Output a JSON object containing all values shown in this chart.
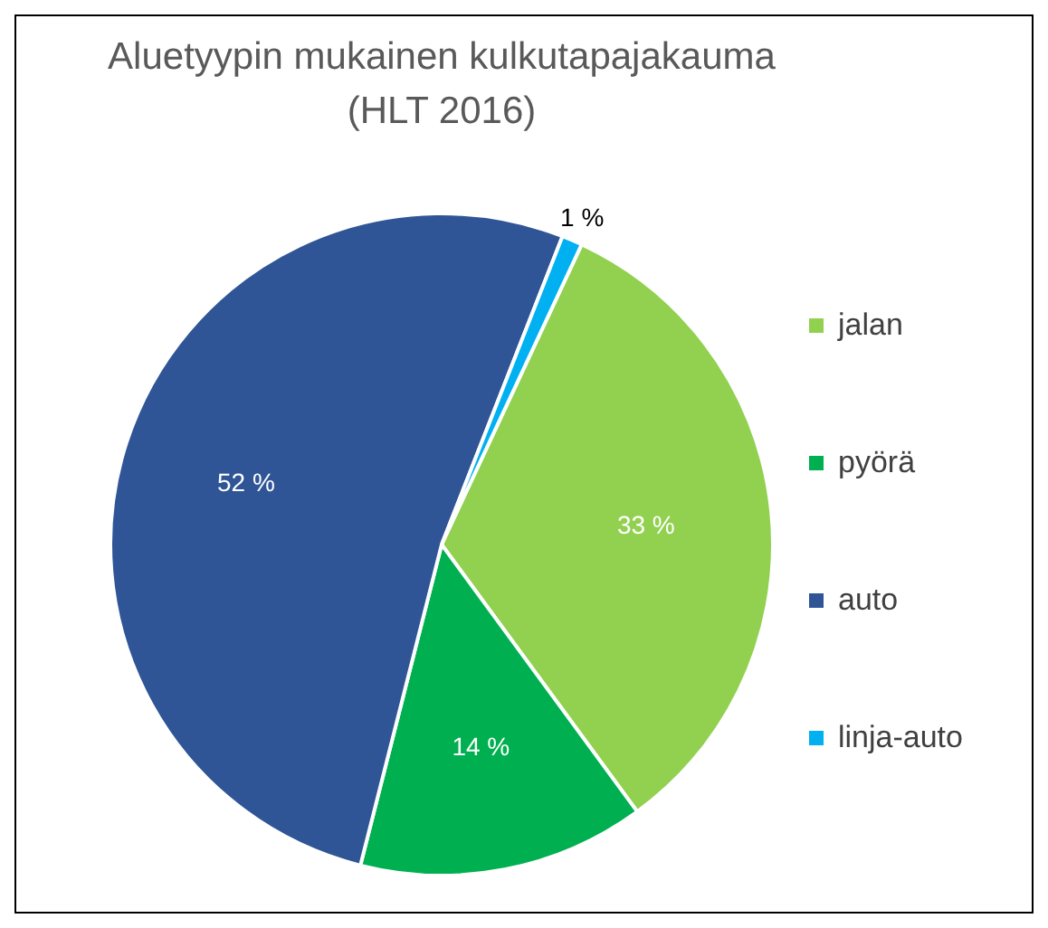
{
  "chart_data": {
    "type": "pie",
    "title": "Aluetyypin mukainen kulkutapajakauma\n(HLT 2016)",
    "categories": [
      "jalan",
      "pyörä",
      "auto",
      "linja-auto"
    ],
    "values": [
      33,
      14,
      52,
      1
    ],
    "colors": [
      "#92d050",
      "#00b050",
      "#2f5597",
      "#00b0f0"
    ],
    "value_labels": [
      "33 %",
      "14 %",
      "52 %",
      "1 %"
    ],
    "legend": "right"
  }
}
